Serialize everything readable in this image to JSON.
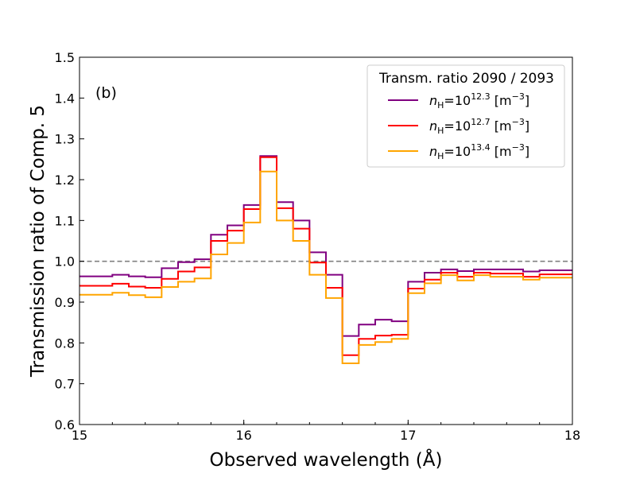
{
  "chart_data": {
    "type": "line",
    "style": "step",
    "panel_label": "(b)",
    "xlabel": "Observed wavelength (Å)",
    "ylabel": "Transmission ratio of Comp. 5",
    "xlim": [
      15,
      18
    ],
    "ylim": [
      0.6,
      1.5
    ],
    "xticks": [
      15,
      16,
      17,
      18
    ],
    "xtick_labels": [
      "15",
      "16",
      "17",
      "18"
    ],
    "yticks": [
      0.6,
      0.7,
      0.8,
      0.9,
      1.0,
      1.1,
      1.2,
      1.3,
      1.4,
      1.5
    ],
    "ytick_labels": [
      "0.6",
      "0.7",
      "0.8",
      "0.9",
      "1.0",
      "1.1",
      "1.2",
      "1.3",
      "1.4",
      "1.5"
    ],
    "reference_line": {
      "y": 1.0,
      "style": "dashed",
      "color": "#808080"
    },
    "legend": {
      "title": "Transm. ratio 2090 / 2093",
      "placement": "top-right"
    },
    "bin_edges": [
      15.0,
      15.1,
      15.2,
      15.3,
      15.4,
      15.5,
      15.6,
      15.7,
      15.8,
      15.9,
      16.0,
      16.1,
      16.2,
      16.3,
      16.4,
      16.5,
      16.6,
      16.7,
      16.8,
      16.9,
      17.0,
      17.1,
      17.2,
      17.3,
      17.4,
      17.5,
      17.6,
      17.7,
      17.8,
      17.9,
      18.0
    ],
    "series": [
      {
        "name": "nH=10^12.3 [m^-3]",
        "label_base": "10",
        "label_exp": "12.3",
        "color": "#800080",
        "values": [
          0.963,
          0.963,
          0.967,
          0.963,
          0.961,
          0.983,
          0.998,
          1.005,
          1.065,
          1.088,
          1.138,
          1.258,
          1.145,
          1.1,
          1.022,
          0.967,
          0.817,
          0.845,
          0.857,
          0.853,
          0.95,
          0.972,
          0.98,
          0.976,
          0.98,
          0.98,
          0.98,
          0.975,
          0.978,
          0.978
        ]
      },
      {
        "name": "nH=10^12.7 [m^-3]",
        "label_base": "10",
        "label_exp": "12.7",
        "color": "#ff0000",
        "values": [
          0.94,
          0.94,
          0.945,
          0.938,
          0.935,
          0.957,
          0.975,
          0.985,
          1.05,
          1.075,
          1.128,
          1.255,
          1.13,
          1.08,
          0.997,
          0.935,
          0.77,
          0.81,
          0.818,
          0.82,
          0.933,
          0.955,
          0.972,
          0.962,
          0.972,
          0.97,
          0.97,
          0.962,
          0.968,
          0.968
        ]
      },
      {
        "name": "nH=10^13.4 [m^-3]",
        "label_base": "10",
        "label_exp": "13.4",
        "color": "#ffa500",
        "values": [
          0.918,
          0.918,
          0.923,
          0.917,
          0.912,
          0.937,
          0.95,
          0.958,
          1.017,
          1.045,
          1.095,
          1.22,
          1.1,
          1.05,
          0.967,
          0.91,
          0.75,
          0.795,
          0.802,
          0.81,
          0.922,
          0.946,
          0.966,
          0.953,
          0.966,
          0.962,
          0.962,
          0.955,
          0.96,
          0.96
        ]
      }
    ]
  }
}
